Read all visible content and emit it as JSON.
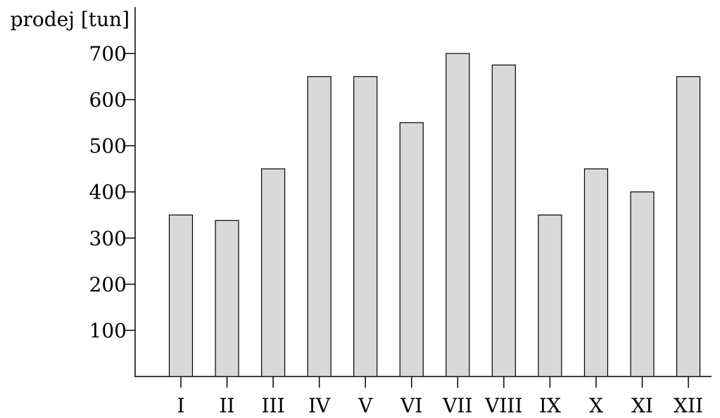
{
  "chart_data": {
    "type": "bar",
    "title": "",
    "xlabel": "",
    "ylabel": "prodej [tun]",
    "categories": [
      "I",
      "II",
      "III",
      "IV",
      "V",
      "VI",
      "VII",
      "VIII",
      "IX",
      "X",
      "XI",
      "XII"
    ],
    "values": [
      350,
      338,
      450,
      650,
      650,
      550,
      700,
      675,
      350,
      450,
      400,
      650
    ],
    "yticks": [
      100,
      200,
      300,
      400,
      500,
      600,
      700
    ],
    "ylim": [
      0,
      800
    ],
    "grid": false,
    "legend": "none",
    "bar_color": "#d9d9d9",
    "edge_color": "#000000"
  }
}
